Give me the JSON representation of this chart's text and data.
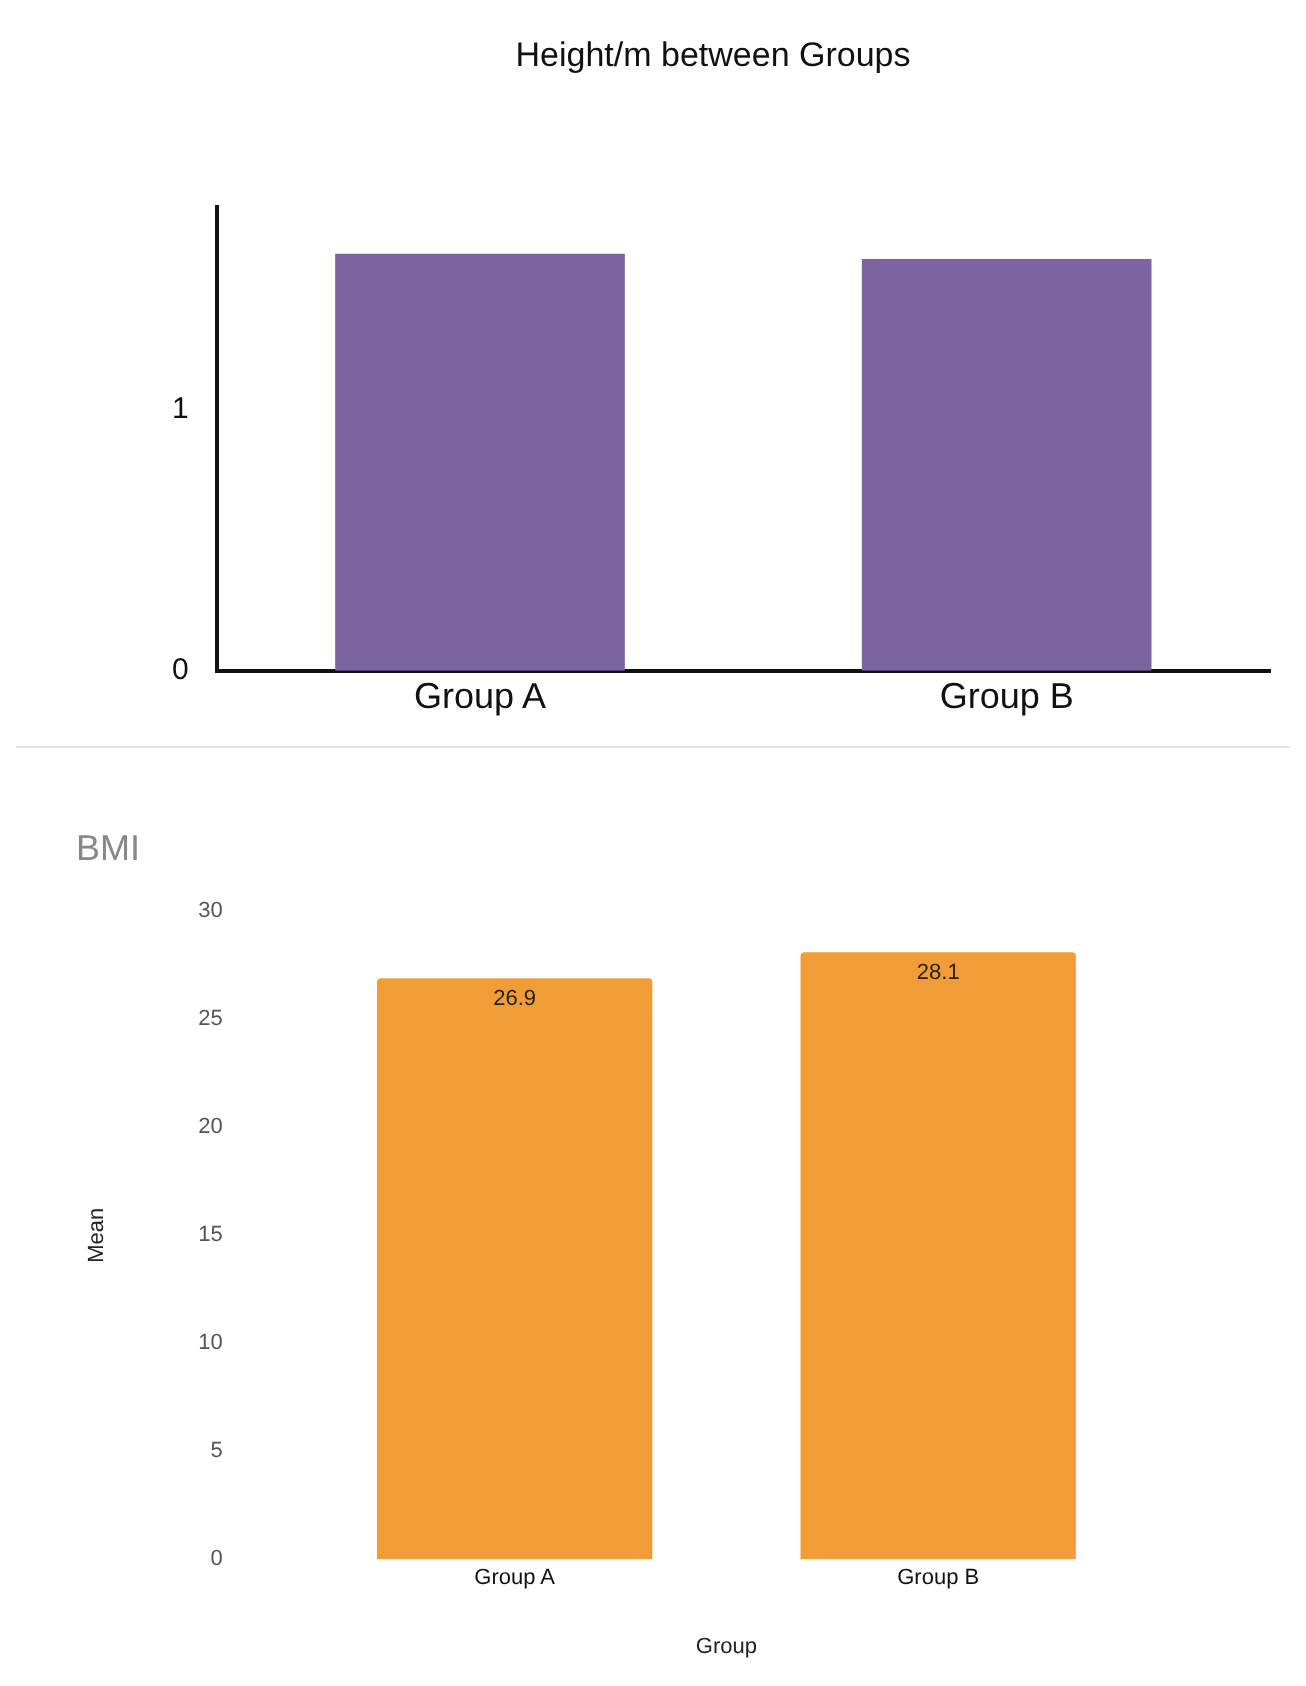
{
  "chart_data": [
    {
      "type": "bar",
      "title": "Height/m between Groups",
      "categories": [
        "Group A",
        "Group B"
      ],
      "values": [
        1.6,
        1.58
      ],
      "color": "#7b64a0",
      "ylim": [
        0,
        1.78
      ],
      "yticks": [
        0,
        1
      ],
      "grid": false,
      "legend": false
    },
    {
      "type": "bar",
      "title": "BMI",
      "xlabel": "Group",
      "ylabel": "Mean",
      "categories": [
        "Group A",
        "Group B"
      ],
      "values": [
        26.9,
        28.1
      ],
      "color": "#f09d38",
      "ylim": [
        0,
        30
      ],
      "yticks": [
        0,
        5,
        10,
        15,
        20,
        25,
        30
      ],
      "grid": false,
      "legend": false,
      "data_labels": true
    }
  ]
}
